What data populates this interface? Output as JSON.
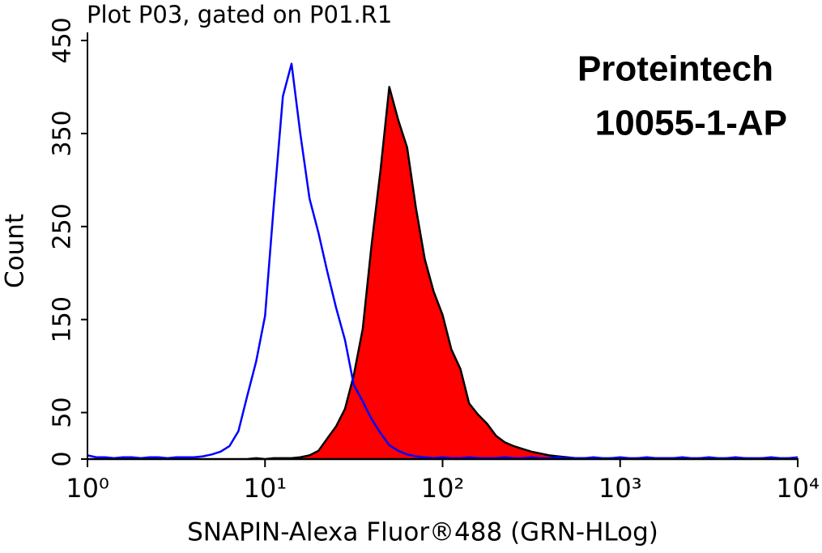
{
  "chart_data": {
    "type": "histogram-overlay",
    "title": "Plot P03, gated on P01.R1",
    "annotations": [
      "Proteintech",
      "10055-1-AP"
    ],
    "x_label": "SNAPIN-Alexa Fluor®488 (GRN-HLog)",
    "y_label": "Count",
    "x_log": true,
    "xlim": [
      1,
      10000
    ],
    "xticks": [
      {
        "value": 1,
        "label": "10⁰"
      },
      {
        "value": 10,
        "label": "10¹"
      },
      {
        "value": 100,
        "label": "10²"
      },
      {
        "value": 1000,
        "label": "10³"
      },
      {
        "value": 10000,
        "label": "10⁴"
      }
    ],
    "ylim": [
      0,
      450
    ],
    "yticks": [
      0,
      50,
      150,
      250,
      350,
      450
    ],
    "x": [
      1,
      1.12,
      1.26,
      1.41,
      1.58,
      1.78,
      2,
      2.24,
      2.51,
      2.82,
      3.16,
      3.55,
      3.98,
      4.47,
      5.01,
      5.62,
      6.31,
      7.08,
      7.94,
      8.91,
      10,
      11.2,
      12.6,
      14.1,
      15.8,
      17.8,
      20,
      22.4,
      25.1,
      28.2,
      31.6,
      35.5,
      39.8,
      44.7,
      50.1,
      56.2,
      63.1,
      70.8,
      79.4,
      89.1,
      100,
      112,
      126,
      141,
      158,
      178,
      200,
      224,
      251,
      282,
      316,
      355,
      398,
      447,
      501,
      562,
      631,
      708,
      794,
      891,
      1000,
      1122,
      1259,
      1413,
      1585,
      1778,
      1995,
      2239,
      2512,
      2818,
      3162,
      3548,
      3981,
      4467,
      5012,
      5623,
      6310,
      7079,
      7943,
      8913,
      10000
    ],
    "series": [
      {
        "color": "#ff0000",
        "edgecolor": "#000000",
        "filled": true,
        "values": [
          0,
          0,
          0,
          0,
          0,
          0,
          0,
          0,
          0,
          0,
          0,
          0,
          0,
          0,
          0,
          0,
          0,
          0,
          0,
          1,
          0,
          1,
          1,
          1,
          2,
          4,
          9,
          22,
          35,
          54,
          90,
          140,
          230,
          310,
          400,
          365,
          335,
          270,
          215,
          180,
          155,
          118,
          97,
          60,
          48,
          38,
          25,
          18,
          14,
          11,
          8,
          6,
          4,
          3,
          2,
          1,
          1,
          1,
          0,
          1,
          1,
          0,
          1,
          0,
          1,
          1,
          1,
          1,
          0,
          1,
          1,
          0,
          1,
          0,
          1,
          0,
          1,
          0,
          0,
          1,
          0
        ]
      },
      {
        "color": "#0000ff",
        "filled": false,
        "values": [
          4,
          2,
          2,
          1,
          2,
          2,
          1,
          2,
          2,
          1,
          2,
          2,
          2,
          3,
          5,
          8,
          14,
          30,
          68,
          105,
          154,
          272,
          390,
          425,
          350,
          280,
          243,
          202,
          163,
          128,
          80,
          62,
          43,
          28,
          15,
          9,
          5,
          3,
          2,
          1,
          2,
          1,
          1,
          2,
          1,
          1,
          1,
          2,
          1,
          1,
          2,
          1,
          1,
          2,
          1,
          1,
          1,
          2,
          1,
          1,
          2,
          1,
          1,
          2,
          1,
          1,
          1,
          2,
          1,
          1,
          2,
          1,
          1,
          2,
          1,
          1,
          1,
          2,
          1,
          1,
          2
        ]
      }
    ]
  }
}
